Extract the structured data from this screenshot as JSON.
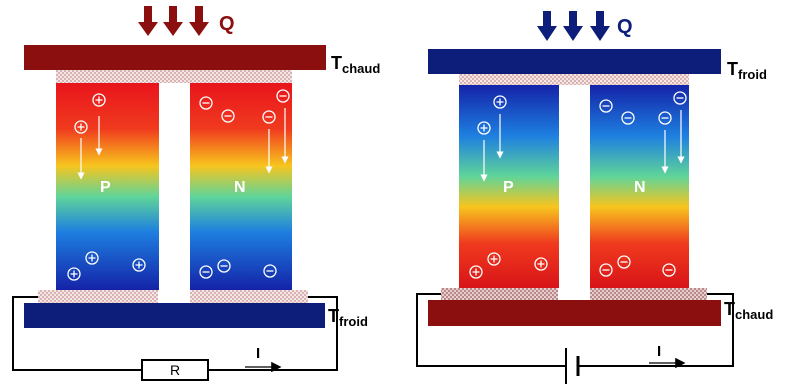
{
  "left_module": {
    "heat_label": "Q",
    "top_temp_main": "T",
    "top_temp_sub": "chaud",
    "bottom_temp_main": "T",
    "bottom_temp_sub": "froid",
    "leg_p": "P",
    "leg_n": "N",
    "resistor_label": "R",
    "current_label": "I",
    "hot_plate_color": "#8B0F0F",
    "cold_plate_color": "#0D1E7A",
    "heat_arrow_color": "#8B0F0F"
  },
  "right_module": {
    "heat_label": "Q",
    "top_temp_main": "T",
    "top_temp_sub": "froid",
    "bottom_temp_main": "T",
    "bottom_temp_sub": "chaud",
    "leg_p": "P",
    "leg_n": "N",
    "current_label": "I",
    "hot_plate_color": "#8B0F0F",
    "cold_plate_color": "#0D1E7A",
    "heat_arrow_color": "#0D1E7A"
  },
  "carrier_symbols": {
    "hole": "+",
    "electron": "−"
  }
}
